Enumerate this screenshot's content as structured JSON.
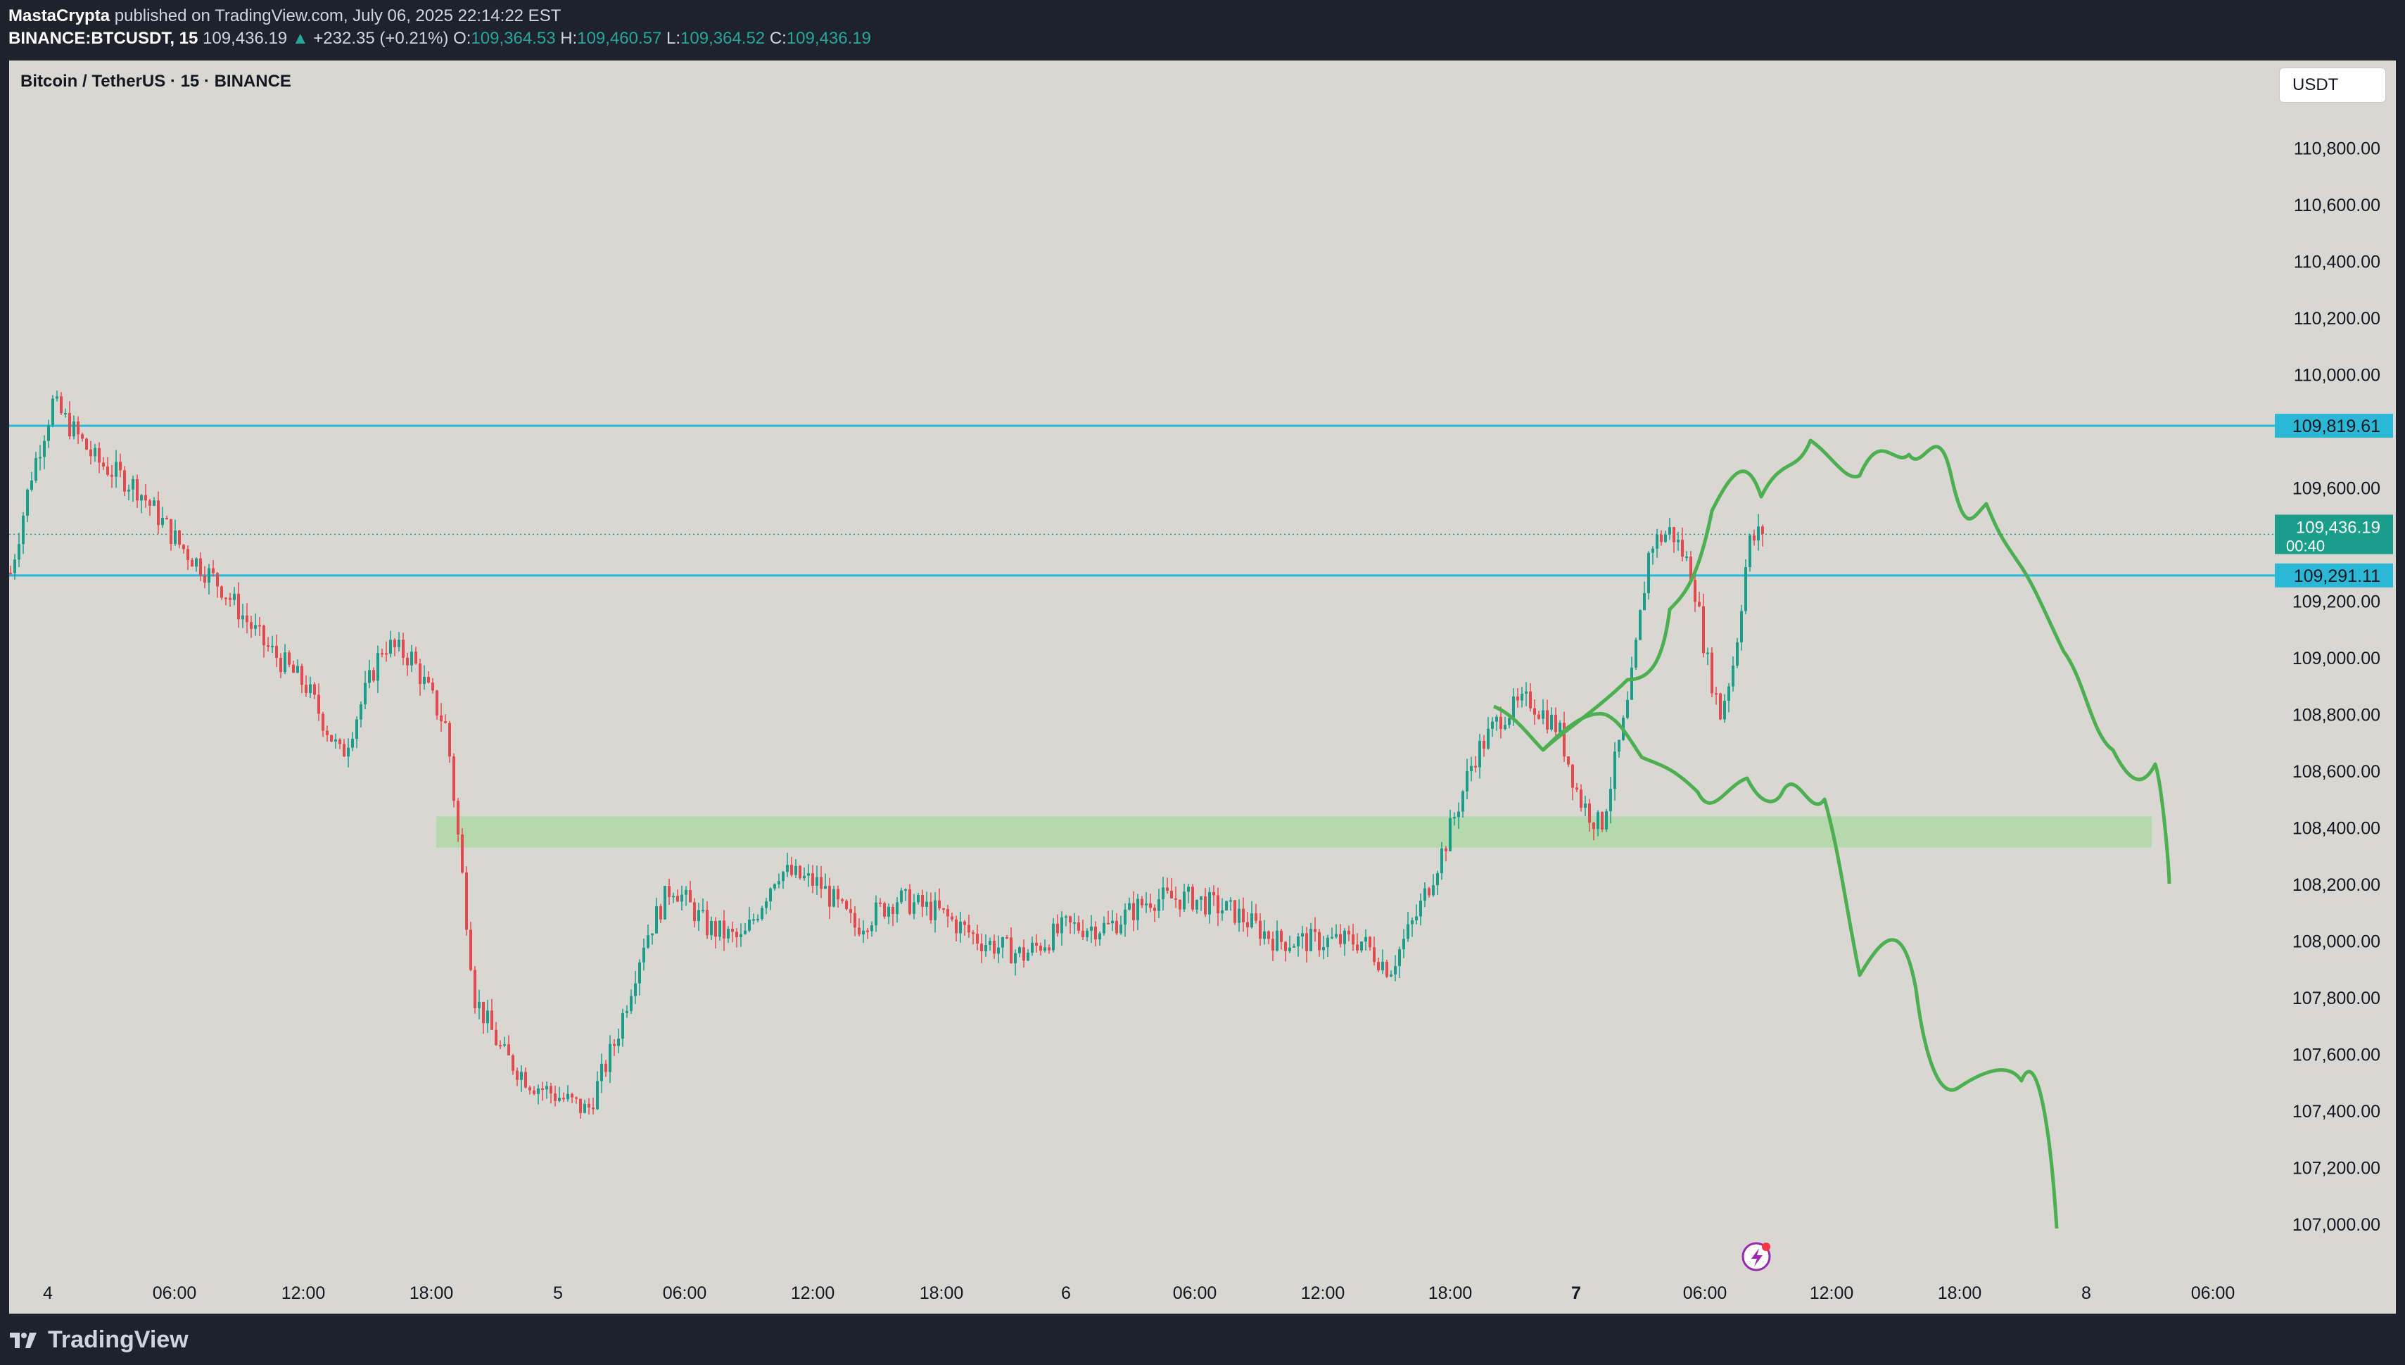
{
  "header": {
    "author": "MastaCrypta",
    "published_text": "published on TradingView.com, July 06, 2025 22:14:22 EST",
    "symbol": "BINANCE:BTCUSDT, 15",
    "last": "109,436.19",
    "change": "+232.35 (+0.21%)",
    "o_label": "O:",
    "o_value": "109,364.53",
    "h_label": "H:",
    "h_value": "109,460.57",
    "l_label": "L:",
    "l_value": "109,364.52",
    "c_label": "C:",
    "c_value": "109,436.19"
  },
  "chart": {
    "title": "Bitcoin / TetherUS · 15 · BINANCE",
    "currency": "USDT",
    "background": "#d8d7d2",
    "up_color": "#1a9e8c",
    "down_color": "#e8474d",
    "level_color": "#2bb7d6",
    "projection_color": "#4caf50",
    "zone_color": "#b2d8a8",
    "y_ticks": [
      "110,800.00",
      "110,600.00",
      "110,400.00",
      "110,200.00",
      "110,000.00",
      "109,600.00",
      "109,200.00",
      "109,000.00",
      "108,800.00",
      "108,600.00",
      "108,400.00",
      "108,200.00",
      "108,000.00",
      "107,800.00",
      "107,600.00",
      "107,400.00",
      "107,200.00",
      "107,000.00"
    ],
    "x_labels": [
      "4",
      "06:00",
      "12:00",
      "18:00",
      "5",
      "06:00",
      "12:00",
      "18:00",
      "6",
      "06:00",
      "12:00",
      "18:00",
      "7",
      "06:00",
      "12:00",
      "18:00",
      "8",
      "06:00"
    ],
    "levels": [
      {
        "label": "109,819.61",
        "value": 109819.61
      },
      {
        "label": "109,291.11",
        "value": 109291.11
      }
    ],
    "last_price": {
      "label": "109,436.19",
      "countdown": "00:40",
      "value": 109436.19
    },
    "support_zone": [
      108330,
      108440
    ]
  },
  "footer": {
    "brand": "TradingView"
  }
}
